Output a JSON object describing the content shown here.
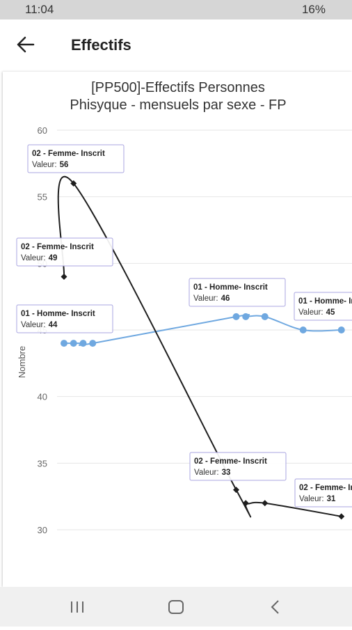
{
  "status_bar": {
    "time": "11:04",
    "battery": "16%"
  },
  "app_bar": {
    "title": "Effectifs"
  },
  "chart_data": {
    "type": "line",
    "title": [
      "[PP500]-Effectifs Personnes",
      "Phisyque - mensuels par sexe - FP"
    ],
    "y_label": "Nombre",
    "tooltip_label": "Valeur:",
    "xlim": [
      -1,
      30
    ],
    "ylim": [
      30,
      60
    ],
    "yticks": [
      30,
      35,
      40,
      45,
      50,
      55,
      60
    ],
    "grid": true,
    "series": [
      {
        "name": "01 - Homme- Inscrit",
        "color": "#6fa8e0",
        "marker": "circle",
        "x": [
          0,
          1,
          2,
          3,
          18,
          19,
          21,
          25,
          29
        ],
        "values": [
          44,
          44,
          44,
          44,
          46,
          46,
          46,
          45,
          45
        ]
      },
      {
        "name": "02 - Femme- Inscrit",
        "color": "#1e1e1e",
        "marker": "diamond",
        "x": [
          0,
          1,
          18,
          19,
          21,
          29
        ],
        "values": [
          49,
          56,
          33,
          32,
          32,
          31
        ]
      }
    ]
  }
}
